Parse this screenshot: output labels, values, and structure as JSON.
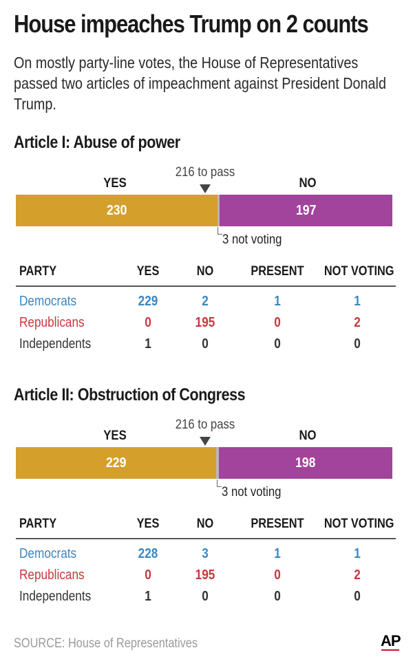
{
  "title": "House impeaches Trump on 2 counts",
  "subtitle": "On mostly party-line votes, the House of Representatives passed two articles of impeachment against President Donald Trump.",
  "colors": {
    "yes": "#D4A02B",
    "no": "#A2439C",
    "notvoting": "#B7B7B7",
    "democrats": "#3C86C2",
    "republicans": "#C8373E",
    "independents": "#333333"
  },
  "table_headers": {
    "party": "PARTY",
    "yes": "YES",
    "no": "NO",
    "present": "PRESENT",
    "not_voting": "NOT VOTING"
  },
  "chart_data": [
    {
      "type": "bar",
      "title": "Article I: Abuse of power",
      "pass_label": "216 to pass",
      "pass_threshold": 216,
      "total_seats": 430,
      "segments": [
        {
          "name": "YES",
          "value": 230,
          "label": "230"
        },
        {
          "name": "NO",
          "value": 197,
          "label": "197"
        }
      ],
      "not_voting_value": 3,
      "not_voting_label": "3 not voting",
      "table": [
        {
          "party": "Democrats",
          "yes": "229",
          "no": "2",
          "present": "1",
          "not_voting": "1",
          "color_key": "democrats"
        },
        {
          "party": "Republicans",
          "yes": "0",
          "no": "195",
          "present": "0",
          "not_voting": "2",
          "color_key": "republicans"
        },
        {
          "party": "Independents",
          "yes": "1",
          "no": "0",
          "present": "0",
          "not_voting": "0",
          "color_key": "independents"
        }
      ]
    },
    {
      "type": "bar",
      "title": "Article II: Obstruction of Congress",
      "pass_label": "216 to pass",
      "pass_threshold": 216,
      "total_seats": 430,
      "segments": [
        {
          "name": "YES",
          "value": 229,
          "label": "229"
        },
        {
          "name": "NO",
          "value": 198,
          "label": "198"
        }
      ],
      "not_voting_value": 3,
      "not_voting_label": "3 not voting",
      "table": [
        {
          "party": "Democrats",
          "yes": "228",
          "no": "3",
          "present": "1",
          "not_voting": "1",
          "color_key": "democrats"
        },
        {
          "party": "Republicans",
          "yes": "0",
          "no": "195",
          "present": "0",
          "not_voting": "2",
          "color_key": "republicans"
        },
        {
          "party": "Independents",
          "yes": "1",
          "no": "0",
          "present": "0",
          "not_voting": "0",
          "color_key": "independents"
        }
      ]
    }
  ],
  "source": "SOURCE: House of Representatives",
  "logo_text": "AP"
}
